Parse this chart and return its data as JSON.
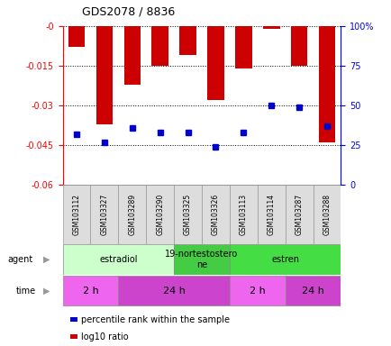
{
  "title": "GDS2078 / 8836",
  "samples": [
    "GSM103112",
    "GSM103327",
    "GSM103289",
    "GSM103290",
    "GSM103325",
    "GSM103326",
    "GSM103113",
    "GSM103114",
    "GSM103287",
    "GSM103288"
  ],
  "log10_ratio": [
    -0.008,
    -0.037,
    -0.022,
    -0.015,
    -0.011,
    -0.028,
    -0.016,
    -0.001,
    -0.015,
    -0.044
  ],
  "percentile_rank": [
    32,
    27,
    36,
    33,
    33,
    24,
    33,
    50,
    49,
    37
  ],
  "ylim_min": -0.06,
  "ylim_max": 0.0,
  "yticks": [
    0.0,
    -0.015,
    -0.03,
    -0.045,
    -0.06
  ],
  "ytick_labels": [
    "-0",
    "-0.015",
    "-0.03",
    "-0.045",
    "-0.06"
  ],
  "y2lim_min": 0,
  "y2lim_max": 100,
  "y2ticks": [
    100,
    75,
    50,
    25,
    0
  ],
  "y2tick_labels": [
    "100%",
    "75",
    "50",
    "25",
    "0"
  ],
  "bar_color": "#cc0000",
  "marker_color": "#0000cc",
  "agent_groups": [
    {
      "label": "estradiol",
      "start": 0,
      "end": 4,
      "color": "#ccffcc"
    },
    {
      "label": "19-nortestostero\nne",
      "start": 4,
      "end": 6,
      "color": "#44cc44"
    },
    {
      "label": "estren",
      "start": 6,
      "end": 10,
      "color": "#44dd44"
    }
  ],
  "time_groups": [
    {
      "label": "2 h",
      "start": 0,
      "end": 2,
      "color": "#ee66ee"
    },
    {
      "label": "24 h",
      "start": 2,
      "end": 6,
      "color": "#cc44cc"
    },
    {
      "label": "2 h",
      "start": 6,
      "end": 8,
      "color": "#ee66ee"
    },
    {
      "label": "24 h",
      "start": 8,
      "end": 10,
      "color": "#cc44cc"
    }
  ],
  "legend_items": [
    {
      "label": "log10 ratio",
      "color": "#cc0000",
      "marker": "s"
    },
    {
      "label": "percentile rank within the sample",
      "color": "#0000cc",
      "marker": "s"
    }
  ],
  "bar_width": 0.6,
  "marker_size": 4,
  "agent_label_fontsize": 7,
  "time_label_fontsize": 8,
  "sample_fontsize": 5.5,
  "legend_fontsize": 7
}
